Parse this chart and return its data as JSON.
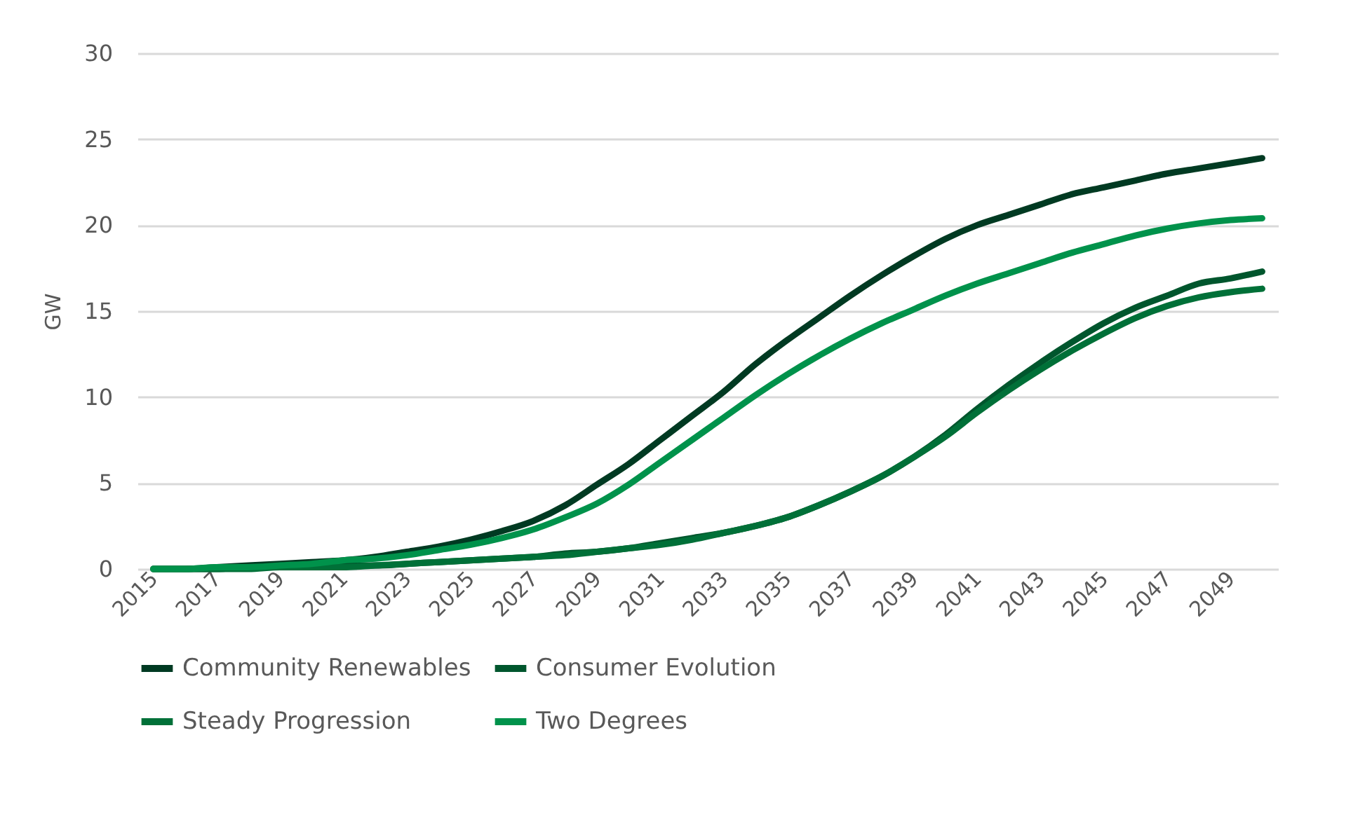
{
  "chart_data": {
    "type": "line",
    "ylabel": "GW",
    "x": [
      2015,
      2016,
      2017,
      2018,
      2019,
      2020,
      2021,
      2022,
      2023,
      2024,
      2025,
      2026,
      2027,
      2028,
      2029,
      2030,
      2031,
      2032,
      2033,
      2034,
      2035,
      2036,
      2037,
      2038,
      2039,
      2040,
      2041,
      2042,
      2043,
      2044,
      2045,
      2046,
      2047,
      2048,
      2049,
      2050
    ],
    "xlim": [
      2014.5,
      2050.5
    ],
    "xticks": [
      2015,
      2017,
      2019,
      2021,
      2023,
      2025,
      2027,
      2029,
      2031,
      2033,
      2035,
      2037,
      2039,
      2041,
      2043,
      2045,
      2047,
      2049
    ],
    "ylim": [
      0,
      30
    ],
    "yticks": [
      0,
      5,
      10,
      15,
      20,
      25,
      30
    ],
    "grid": "y",
    "legend": "bottom",
    "marker": "none",
    "line_style": "solid",
    "series": [
      {
        "name": "Community Renewables",
        "color": "#003a22",
        "values": [
          0,
          0,
          0.1,
          0.2,
          0.3,
          0.4,
          0.5,
          0.7,
          1.0,
          1.3,
          1.7,
          2.2,
          2.8,
          3.7,
          4.9,
          6.1,
          7.5,
          8.9,
          10.3,
          11.9,
          13.3,
          14.6,
          15.9,
          17.1,
          18.2,
          19.2,
          20.0,
          20.6,
          21.2,
          21.8,
          22.2,
          22.6,
          23.0,
          23.3,
          23.6,
          23.9
        ]
      },
      {
        "name": "Consumer Evolution",
        "color": "#00562d",
        "values": [
          0,
          0,
          0,
          0.1,
          0.1,
          0.1,
          0.2,
          0.2,
          0.3,
          0.4,
          0.5,
          0.6,
          0.7,
          0.9,
          1.0,
          1.2,
          1.5,
          1.8,
          2.1,
          2.5,
          3.0,
          3.7,
          4.5,
          5.4,
          6.5,
          7.8,
          9.3,
          10.7,
          12.0,
          13.2,
          14.3,
          15.2,
          15.9,
          16.6,
          16.9,
          17.3
        ]
      },
      {
        "name": "Steady Progression",
        "color": "#007038",
        "values": [
          0,
          0,
          0,
          0,
          0.1,
          0.1,
          0.1,
          0.2,
          0.3,
          0.4,
          0.5,
          0.6,
          0.7,
          0.8,
          1.0,
          1.2,
          1.4,
          1.7,
          2.1,
          2.5,
          3.0,
          3.7,
          4.5,
          5.4,
          6.5,
          7.7,
          9.1,
          10.4,
          11.6,
          12.7,
          13.7,
          14.6,
          15.3,
          15.8,
          16.1,
          16.3
        ]
      },
      {
        "name": "Two Degrees",
        "color": "#00924b",
        "values": [
          0,
          0,
          0.1,
          0.1,
          0.2,
          0.3,
          0.5,
          0.6,
          0.8,
          1.1,
          1.4,
          1.8,
          2.3,
          3.0,
          3.8,
          4.9,
          6.2,
          7.5,
          8.8,
          10.1,
          11.3,
          12.4,
          13.4,
          14.3,
          15.1,
          15.9,
          16.6,
          17.2,
          17.8,
          18.4,
          18.9,
          19.4,
          19.8,
          20.1,
          20.3,
          20.4
        ]
      }
    ]
  }
}
